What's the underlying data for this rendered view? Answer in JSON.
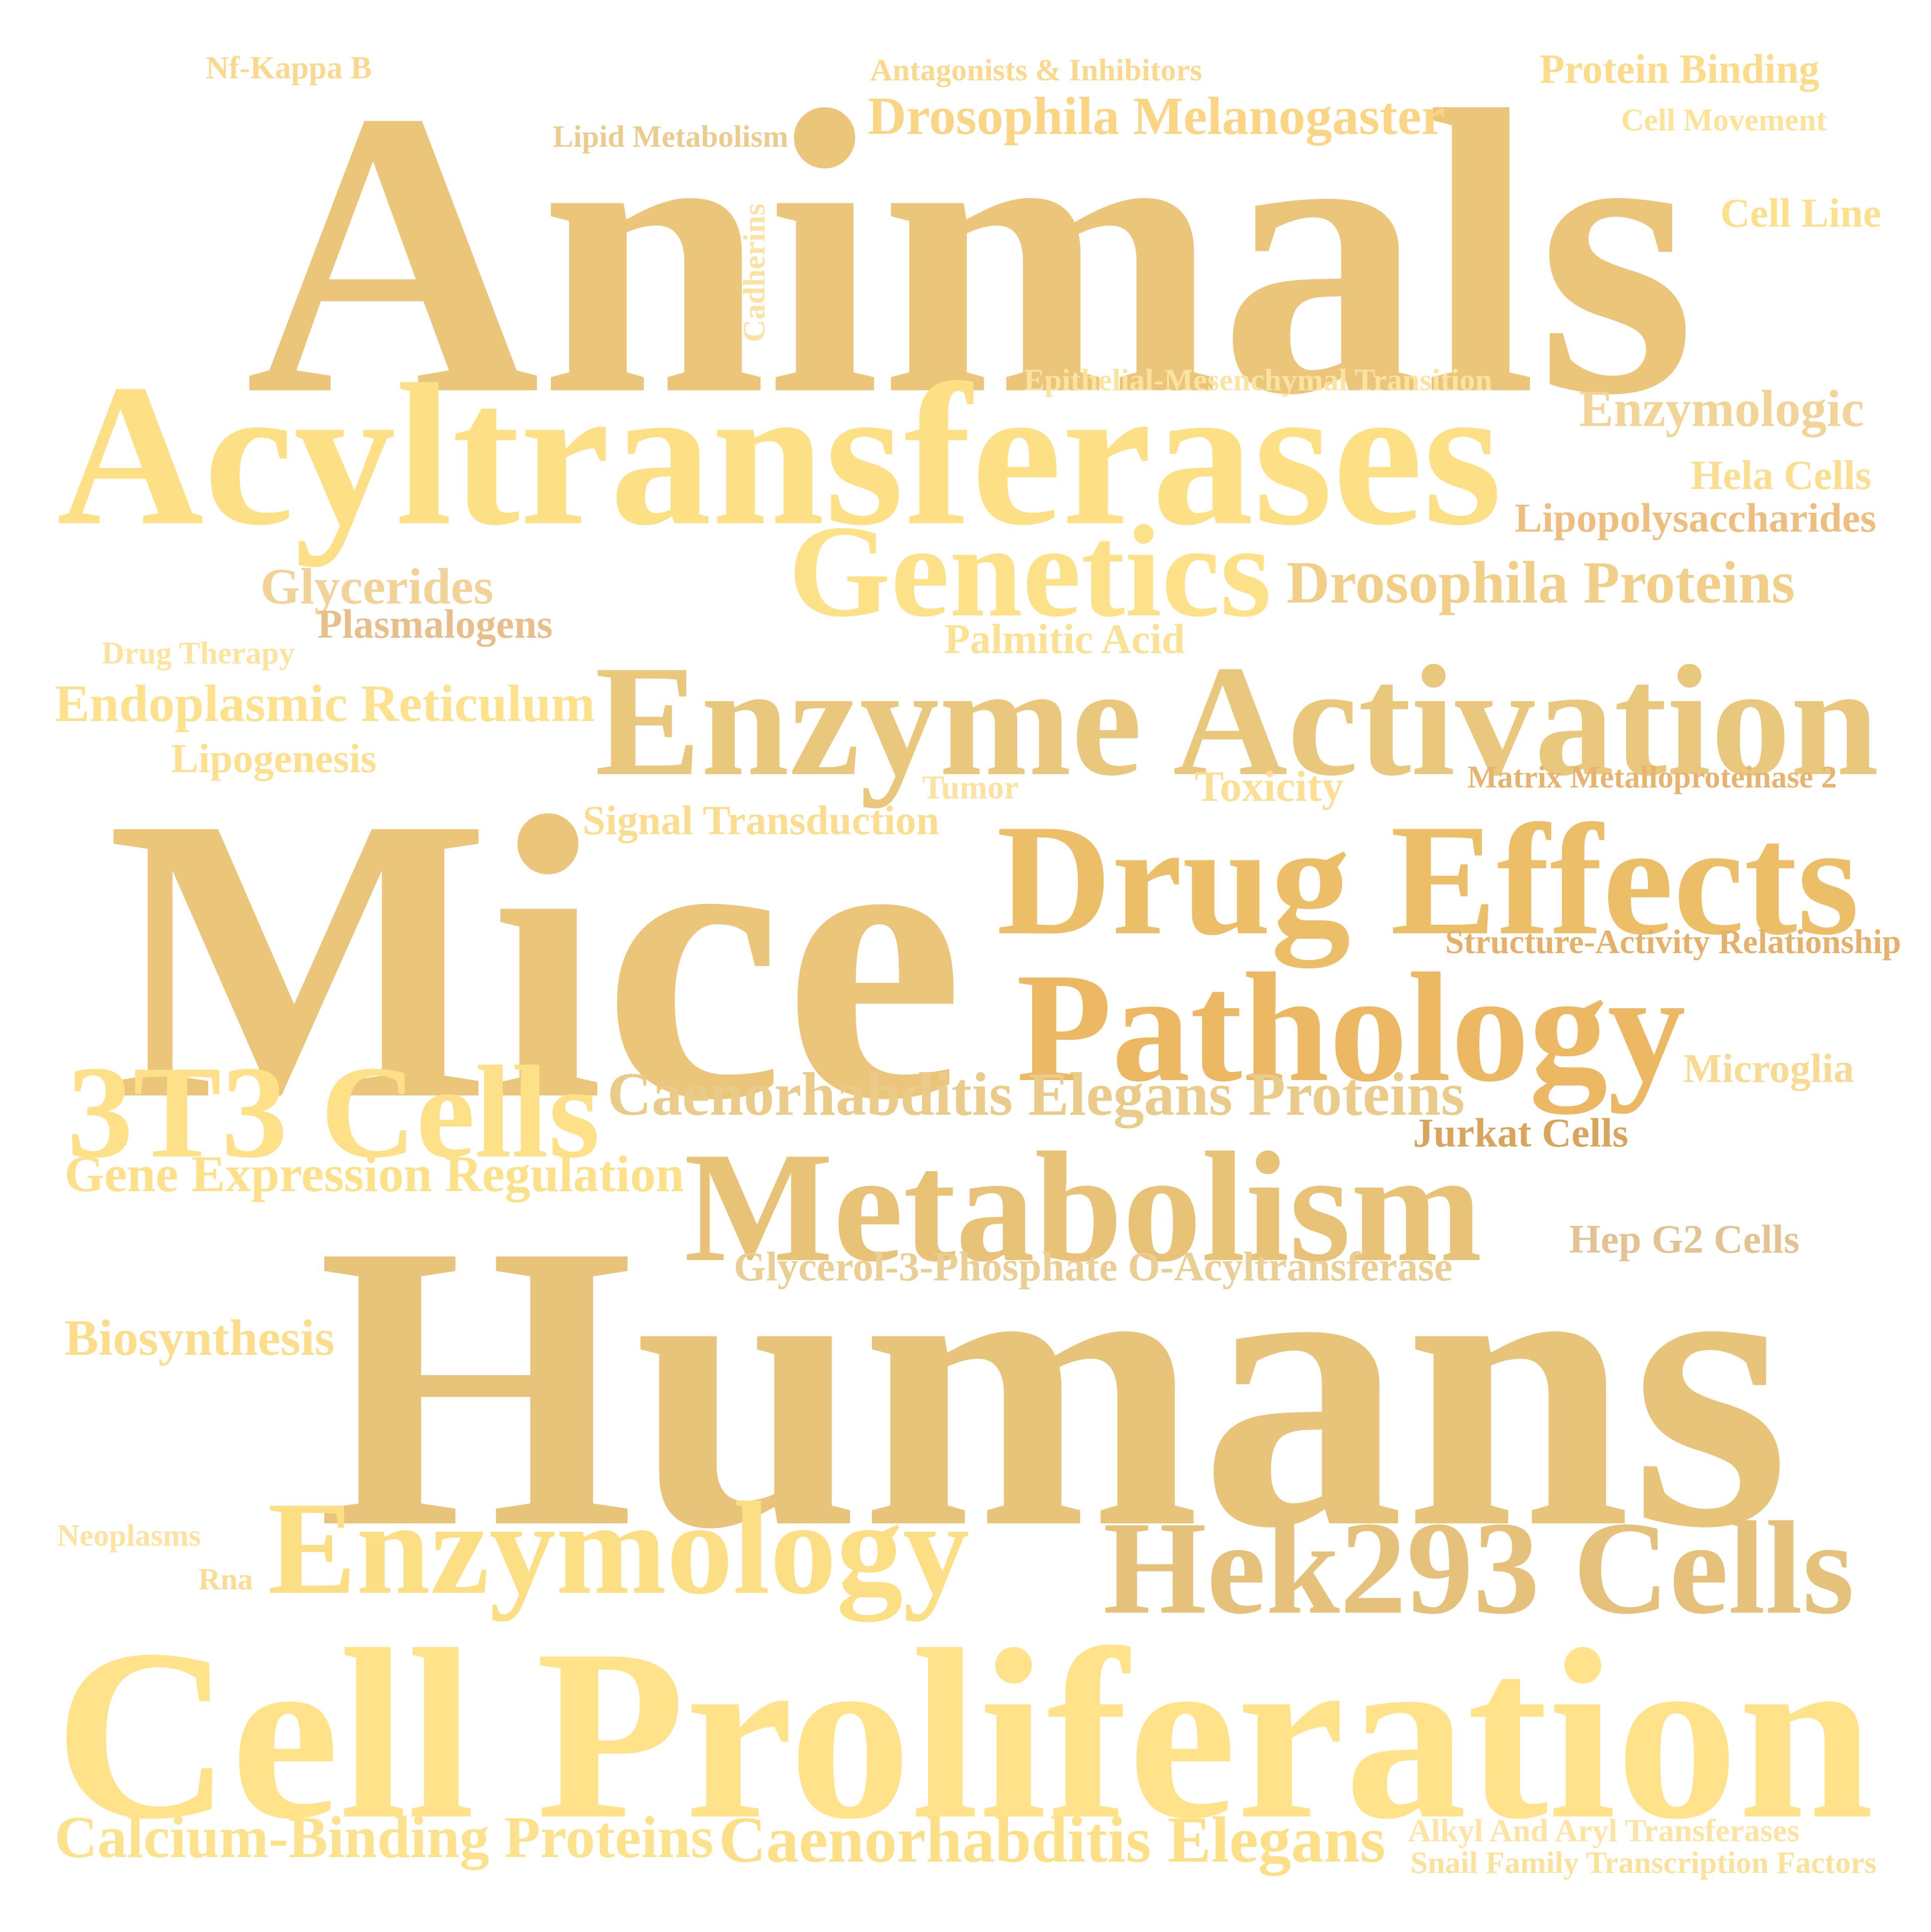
{
  "words": [
    {
      "text": "Animals",
      "color": "#EAC57A"
    },
    {
      "text": "Mice",
      "color": "#EAC57A"
    },
    {
      "text": "Humans",
      "color": "#E8C47A"
    },
    {
      "text": "Cell Proliferation",
      "color": "#FFE28A"
    },
    {
      "text": "Acyltransferases",
      "color": "#FDE086"
    },
    {
      "text": "Enzyme Activation",
      "color": "#E9C77C"
    },
    {
      "text": "Drug Effects",
      "color": "#EDBE68"
    },
    {
      "text": "Pathology",
      "color": "#EDB864"
    },
    {
      "text": "Metabolism",
      "color": "#E8C277"
    },
    {
      "text": "Hek293 Cells",
      "color": "#E5C17C"
    },
    {
      "text": "Enzymology",
      "color": "#FCDE85"
    },
    {
      "text": "Genetics",
      "color": "#FDE189"
    },
    {
      "text": "3T3 Cells",
      "color": "#FEE088"
    },
    {
      "text": "Caenorhabditis Elegans Proteins",
      "color": "#EACB8A"
    },
    {
      "text": "Drosophila Melanogaster",
      "color": "#FAD584"
    },
    {
      "text": "Drosophila Proteins",
      "color": "#F2CF88"
    },
    {
      "text": "Gene Expression Regulation",
      "color": "#FDE18A"
    },
    {
      "text": "Glycerol-3-Phosphate O-Acyltransferase",
      "color": "#EACE93"
    },
    {
      "text": "Endoplasmic Reticulum",
      "color": "#FDE18C"
    },
    {
      "text": "Calcium-Binding Proteins",
      "color": "#FDE28D"
    },
    {
      "text": "Caenorhabditis Elegans",
      "color": "#FDDF88"
    },
    {
      "text": "Biosynthesis",
      "color": "#FCDD8C"
    },
    {
      "text": "Glycerides",
      "color": "#F2D297"
    },
    {
      "text": "Plasmalogens",
      "color": "#E8BE8A"
    },
    {
      "text": "Lipopolysaccharides",
      "color": "#EDBE7E"
    },
    {
      "text": "Signal Transduction",
      "color": "#FBDD8F"
    },
    {
      "text": "Palmitic Acid",
      "color": "#FAE193"
    },
    {
      "text": "Enzymologic",
      "color": "#F2D499"
    },
    {
      "text": "Hela Cells",
      "color": "#FBDE8F"
    },
    {
      "text": "Protein Binding",
      "color": "#FCDC8B"
    },
    {
      "text": "Cell Line",
      "color": "#FDE08E"
    },
    {
      "text": "Microglia",
      "color": "#F7DA94"
    },
    {
      "text": "Hep G2 Cells",
      "color": "#E3C393"
    },
    {
      "text": "Jurkat Cells",
      "color": "#D9A45B"
    },
    {
      "text": "Lipogenesis",
      "color": "#FDE08F"
    },
    {
      "text": "Toxicity",
      "color": "#FBDF94"
    },
    {
      "text": "Matrix Metalloproteinase 2",
      "color": "#E8B36E"
    },
    {
      "text": "Structure-Activity Relationship",
      "color": "#E5B06A"
    },
    {
      "text": "Epithelial-Mesenchymal Transition",
      "color": "#FBE4A2"
    },
    {
      "text": "Antagonists & Inhibitors",
      "color": "#FAD98E"
    },
    {
      "text": "Lipid Metabolism",
      "color": "#ECCC8E"
    },
    {
      "text": "Cell Movement",
      "color": "#FDE299"
    },
    {
      "text": "Nf-Kappa B",
      "color": "#FAD98E"
    },
    {
      "text": "Cadherins",
      "color": "#FBE2A4"
    },
    {
      "text": "Drug Therapy",
      "color": "#FDE3A0"
    },
    {
      "text": "Tumor",
      "color": "#FBE2A0"
    },
    {
      "text": "Neoplasms",
      "color": "#FDE3A2"
    },
    {
      "text": "Rna",
      "color": "#FCDC95"
    },
    {
      "text": "Alkyl And Aryl Transferases",
      "color": "#FDE4A2"
    },
    {
      "text": "Snail Family Transcription Factors",
      "color": "#FBE19A"
    }
  ]
}
